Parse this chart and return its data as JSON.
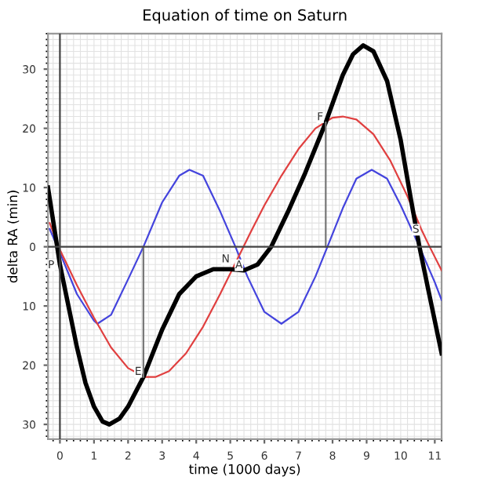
{
  "chart_data": {
    "type": "line",
    "title": "Equation of time on Saturn",
    "xlabel": "time (1000 days)",
    "ylabel": "delta RA (min)",
    "xlim": [
      -0.35,
      11.2
    ],
    "ylim": [
      -32.5,
      36
    ],
    "xticks": [
      0,
      1,
      2,
      3,
      4,
      5,
      6,
      7,
      8,
      9,
      10,
      11
    ],
    "yticks": [
      {
        "value": -30,
        "label": "30"
      },
      {
        "value": -20,
        "label": "20"
      },
      {
        "value": -10,
        "label": "10"
      },
      0,
      10,
      20,
      30
    ],
    "grid": true,
    "marker": "none",
    "line_style": "solid",
    "series": [
      {
        "color": "#4444dd",
        "x": [
          -0.3,
          0,
          0.5,
          1,
          1.1,
          1.5,
          2,
          2.45,
          3,
          3.5,
          3.8,
          4.2,
          4.7,
          5.15,
          5.5,
          6,
          6.5,
          7,
          7.5,
          7.85,
          8.3,
          8.7,
          9.15,
          9.6,
          10,
          10.55,
          11,
          11.2
        ],
        "values": [
          3,
          -1,
          -8,
          -12.5,
          -13,
          -11.5,
          -5.5,
          0,
          7.5,
          12,
          13,
          12,
          6,
          0,
          -5,
          -11,
          -13,
          -11,
          -5,
          0,
          6.5,
          11.5,
          13,
          11.5,
          7,
          0,
          -6,
          -9
        ]
      },
      {
        "color": "#e04040",
        "x": [
          -0.3,
          0,
          0.5,
          1,
          1.5,
          2,
          2.5,
          2.8,
          3.2,
          3.7,
          4.2,
          4.7,
          5.3,
          5.6,
          6,
          6.5,
          7,
          7.5,
          8,
          8.3,
          8.7,
          9.2,
          9.7,
          10.2,
          10.6,
          10.85,
          11.2
        ],
        "values": [
          4,
          -0.5,
          -6.5,
          -12,
          -17,
          -20.5,
          -22,
          -22,
          -21,
          -18,
          -13.5,
          -8,
          -1,
          2.5,
          7,
          12,
          16.5,
          20,
          21.8,
          22,
          21.5,
          19,
          14.5,
          8.5,
          3,
          0,
          -4
        ]
      },
      {
        "color": "#000000",
        "x": [
          -0.35,
          0,
          0.25,
          0.5,
          0.75,
          1,
          1.25,
          1.45,
          1.75,
          2,
          2.45,
          3,
          3.5,
          4,
          4.5,
          5,
          5.4,
          5.8,
          6.2,
          6.7,
          7.2,
          7.8,
          8.3,
          8.6,
          8.9,
          9.2,
          9.6,
          10,
          10.3,
          10.55,
          10.8,
          11.2
        ],
        "values": [
          10,
          -3,
          -10,
          -17,
          -23,
          -27,
          -29.5,
          -30,
          -29,
          -27,
          -22,
          -14,
          -8,
          -5,
          -3.8,
          -3.8,
          -4,
          -3,
          0,
          6,
          12.5,
          21,
          29,
          32.5,
          34,
          33,
          28,
          18,
          8,
          0,
          -7,
          -18
        ]
      },
      {
        "color": "#777777",
        "x": [
          2.45,
          2.45
        ],
        "values": [
          0,
          -22
        ]
      },
      {
        "color": "#777777",
        "x": [
          7.8,
          7.8
        ],
        "values": [
          0,
          21
        ]
      },
      {
        "color": "#444444",
        "x": [
          -0.35,
          11.2
        ],
        "values": [
          0,
          0
        ]
      },
      {
        "color": "#444444",
        "x": [
          0,
          0
        ],
        "values": [
          -32.5,
          36
        ]
      }
    ],
    "annotations": [
      {
        "text": "P",
        "x": -0.1,
        "y": -4
      },
      {
        "text": "E",
        "x": 2.45,
        "y": -22
      },
      {
        "text": "N",
        "x": 5.0,
        "y": -3
      },
      {
        "text": "A",
        "x": 5.4,
        "y": -4
      },
      {
        "text": "F",
        "x": 7.8,
        "y": 21
      },
      {
        "text": "S",
        "x": 10.6,
        "y": 2
      }
    ]
  }
}
